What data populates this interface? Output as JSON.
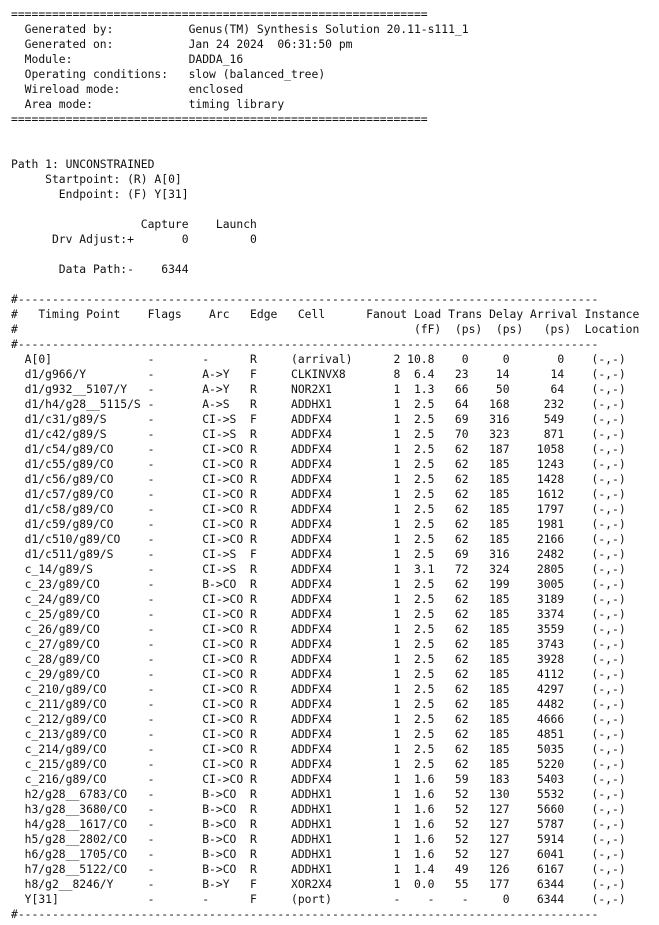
{
  "lines": [
    "=============================================================",
    "  Generated by:           Genus(TM) Synthesis Solution 20.11-s111_1",
    "  Generated on:           Jan 24 2024  06:31:50 pm",
    "  Module:                 DADDA_16",
    "  Operating conditions:   slow (balanced_tree)",
    "  Wireload mode:          enclosed",
    "  Area mode:              timing library",
    "=============================================================",
    "",
    "",
    "Path 1: UNCONSTRAINED",
    "     Startpoint: (R) A[0]",
    "       Endpoint: (F) Y[31]",
    "",
    "                   Capture    Launch",
    "      Drv Adjust:+       0         0",
    "",
    "       Data Path:-    6344",
    "",
    "#-------------------------------------------------------------------------------------",
    "#   Timing Point    Flags    Arc   Edge   Cell      Fanout Load Trans Delay Arrival Instance",
    "#                                                          (fF)  (ps)  (ps)   (ps)  Location",
    "#-------------------------------------------------------------------------------------",
    "  A[0]              -       -      R     (arrival)      2 10.8    0     0       0    (-,-)",
    "  d1/g966/Y         -       A->Y   F     CLKINVX8       8  6.4   23    14      14    (-,-)",
    "  d1/g932__5107/Y   -       A->Y   R     NOR2X1         1  1.3   66    50      64    (-,-)",
    "  d1/h4/g28__5115/S -       A->S   R     ADDHX1         1  2.5   64   168     232    (-,-)",
    "  d1/c31/g89/S      -       CI->S  F     ADDFX4         1  2.5   69   316     549    (-,-)",
    "  d1/c42/g89/S      -       CI->S  R     ADDFX4         1  2.5   70   323     871    (-,-)",
    "  d1/c54/g89/CO     -       CI->CO R     ADDFX4         1  2.5   62   187    1058    (-,-)",
    "  d1/c55/g89/CO     -       CI->CO R     ADDFX4         1  2.5   62   185    1243    (-,-)",
    "  d1/c56/g89/CO     -       CI->CO R     ADDFX4         1  2.5   62   185    1428    (-,-)",
    "  d1/c57/g89/CO     -       CI->CO R     ADDFX4         1  2.5   62   185    1612    (-,-)",
    "  d1/c58/g89/CO     -       CI->CO R     ADDFX4         1  2.5   62   185    1797    (-,-)",
    "  d1/c59/g89/CO     -       CI->CO R     ADDFX4         1  2.5   62   185    1981    (-,-)",
    "  d1/c510/g89/CO    -       CI->CO R     ADDFX4         1  2.5   62   185    2166    (-,-)",
    "  d1/c511/g89/S     -       CI->S  F     ADDFX4         1  2.5   69   316    2482    (-,-)",
    "  c_14/g89/S        -       CI->S  R     ADDFX4         1  3.1   72   324    2805    (-,-)",
    "  c_23/g89/CO       -       B->CO  R     ADDFX4         1  2.5   62   199    3005    (-,-)",
    "  c_24/g89/CO       -       CI->CO R     ADDFX4         1  2.5   62   185    3189    (-,-)",
    "  c_25/g89/CO       -       CI->CO R     ADDFX4         1  2.5   62   185    3374    (-,-)",
    "  c_26/g89/CO       -       CI->CO R     ADDFX4         1  2.5   62   185    3559    (-,-)",
    "  c_27/g89/CO       -       CI->CO R     ADDFX4         1  2.5   62   185    3743    (-,-)",
    "  c_28/g89/CO       -       CI->CO R     ADDFX4         1  2.5   62   185    3928    (-,-)",
    "  c_29/g89/CO       -       CI->CO R     ADDFX4         1  2.5   62   185    4112    (-,-)",
    "  c_210/g89/CO      -       CI->CO R     ADDFX4         1  2.5   62   185    4297    (-,-)",
    "  c_211/g89/CO      -       CI->CO R     ADDFX4         1  2.5   62   185    4482    (-,-)",
    "  c_212/g89/CO      -       CI->CO R     ADDFX4         1  2.5   62   185    4666    (-,-)",
    "  c_213/g89/CO      -       CI->CO R     ADDFX4         1  2.5   62   185    4851    (-,-)",
    "  c_214/g89/CO      -       CI->CO R     ADDFX4         1  2.5   62   185    5035    (-,-)",
    "  c_215/g89/CO      -       CI->CO R     ADDFX4         1  2.5   62   185    5220    (-,-)",
    "  c_216/g89/CO      -       CI->CO R     ADDFX4         1  1.6   59   183    5403    (-,-)",
    "  h2/g28__6783/CO   -       B->CO  R     ADDHX1         1  1.6   52   130    5532    (-,-)",
    "  h3/g28__3680/CO   -       B->CO  R     ADDHX1         1  1.6   52   127    5660    (-,-)",
    "  h4/g28__1617/CO   -       B->CO  R     ADDHX1         1  1.6   52   127    5787    (-,-)",
    "  h5/g28__2802/CO   -       B->CO  R     ADDHX1         1  1.6   52   127    5914    (-,-)",
    "  h6/g28__1705/CO   -       B->CO  R     ADDHX1         1  1.6   52   127    6041    (-,-)",
    "  h7/g28__5122/CO   -       B->CO  R     ADDHX1         1  1.4   49   126    6167    (-,-)",
    "  h8/g2__8246/Y     -       B->Y   F     XOR2X4         1  0.0   55   177    6344    (-,-)",
    "  Y[31]             -       -      F     (port)         -    -    -     0    6344    (-,-)",
    "#-------------------------------------------------------------------------------------"
  ]
}
